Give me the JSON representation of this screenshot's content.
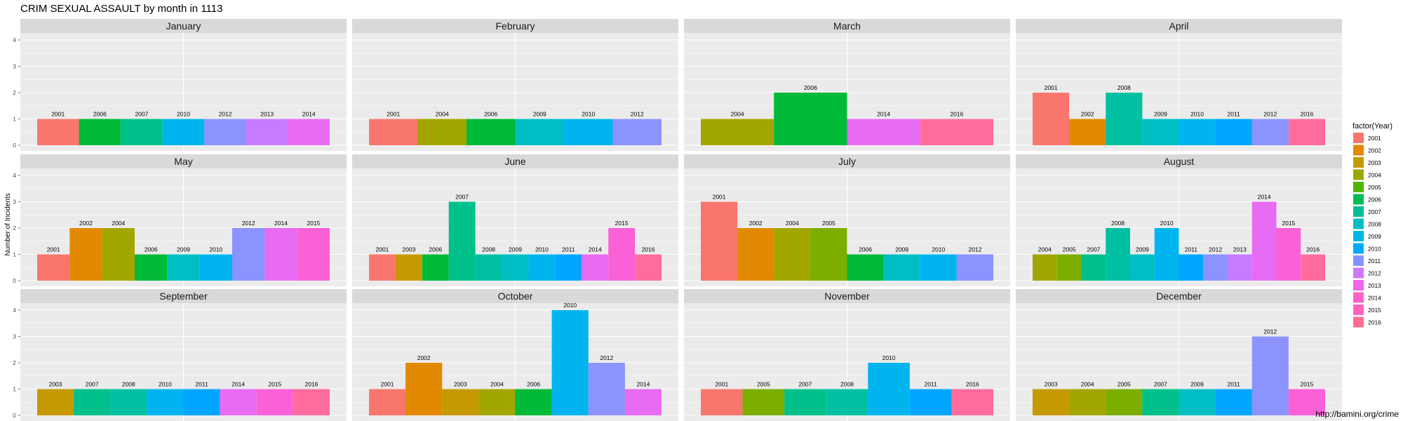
{
  "chart_title": "CRIM SEXUAL ASSAULT by month in 1113",
  "credit": "http://bamini.org/crime",
  "chart_data": {
    "type": "bar",
    "title": "CRIM SEXUAL ASSAULT by month in 1113",
    "xlabel": "",
    "ylabel": "Number of Incidents",
    "ylim": [
      0,
      4
    ],
    "yticks": [
      "0",
      "1",
      "2",
      "3",
      "4"
    ],
    "grid": true,
    "legend": {
      "title": "factor(Year)",
      "placement": "right",
      "entries": [
        {
          "label": "2001",
          "color": "#F8766D"
        },
        {
          "label": "2002",
          "color": "#E38900"
        },
        {
          "label": "2003",
          "color": "#C49A00"
        },
        {
          "label": "2004",
          "color": "#99A800"
        },
        {
          "label": "2005",
          "color": "#53B400"
        },
        {
          "label": "2006",
          "color": "#00BC56"
        },
        {
          "label": "2007",
          "color": "#00C094"
        },
        {
          "label": "2008",
          "color": "#00BFC4"
        },
        {
          "label": "2009",
          "color": "#00B8E7"
        },
        {
          "label": "2010",
          "color": "#00A9FF"
        },
        {
          "label": "2011",
          "color": "#8494FF"
        },
        {
          "label": "2012",
          "color": "#CF78FF"
        },
        {
          "label": "2013",
          "color": "#F066EA"
        },
        {
          "label": "2014",
          "color": "#FF61C9"
        },
        {
          "label": "2015",
          "color": "#FF62BC"
        },
        {
          "label": "2016",
          "color": "#FF6C90"
        }
      ]
    },
    "facets": [
      {
        "month": "January",
        "bars": [
          {
            "year": "2001",
            "value": 1,
            "color": "#F8766D"
          },
          {
            "year": "2006",
            "value": 1,
            "color": "#00BA38"
          },
          {
            "year": "2007",
            "value": 1,
            "color": "#00C08B"
          },
          {
            "year": "2010",
            "value": 1,
            "color": "#00B4F0"
          },
          {
            "year": "2012",
            "value": 1,
            "color": "#8B93FF"
          },
          {
            "year": "2013",
            "value": 1,
            "color": "#C77CFF"
          },
          {
            "year": "2014",
            "value": 1,
            "color": "#E76BF3"
          }
        ]
      },
      {
        "month": "February",
        "bars": [
          {
            "year": "2001",
            "value": 1,
            "color": "#F8766D"
          },
          {
            "year": "2004",
            "value": 1,
            "color": "#A3A500"
          },
          {
            "year": "2006",
            "value": 1,
            "color": "#00BA38"
          },
          {
            "year": "2009",
            "value": 1,
            "color": "#00BFC4"
          },
          {
            "year": "2010",
            "value": 1,
            "color": "#00B4F0"
          },
          {
            "year": "2012",
            "value": 1,
            "color": "#8B93FF"
          }
        ]
      },
      {
        "month": "March",
        "bars": [
          {
            "year": "2004",
            "value": 1,
            "color": "#A3A500"
          },
          {
            "year": "2006",
            "value": 2,
            "color": "#00BA38"
          },
          {
            "year": "2014",
            "value": 1,
            "color": "#E76BF3"
          },
          {
            "year": "2016",
            "value": 1,
            "color": "#FF6C9C"
          }
        ]
      },
      {
        "month": "April",
        "bars": [
          {
            "year": "2001",
            "value": 2,
            "color": "#F8766D"
          },
          {
            "year": "2002",
            "value": 1,
            "color": "#E38900"
          },
          {
            "year": "2008",
            "value": 2,
            "color": "#00C0A3"
          },
          {
            "year": "2009",
            "value": 1,
            "color": "#00BFC4"
          },
          {
            "year": "2010",
            "value": 1,
            "color": "#00B4F0"
          },
          {
            "year": "2011",
            "value": 1,
            "color": "#00A5FF"
          },
          {
            "year": "2012",
            "value": 1,
            "color": "#8B93FF"
          },
          {
            "year": "2016",
            "value": 1,
            "color": "#FF6C9C"
          }
        ]
      },
      {
        "month": "May",
        "bars": [
          {
            "year": "2001",
            "value": 1,
            "color": "#F8766D"
          },
          {
            "year": "2002",
            "value": 2,
            "color": "#E38900"
          },
          {
            "year": "2004",
            "value": 2,
            "color": "#A3A500"
          },
          {
            "year": "2006",
            "value": 1,
            "color": "#00BA38"
          },
          {
            "year": "2009",
            "value": 1,
            "color": "#00BFC4"
          },
          {
            "year": "2010",
            "value": 1,
            "color": "#00B4F0"
          },
          {
            "year": "2012",
            "value": 2,
            "color": "#8B93FF"
          },
          {
            "year": "2014",
            "value": 2,
            "color": "#E76BF3"
          },
          {
            "year": "2015",
            "value": 2,
            "color": "#FB61D7"
          }
        ]
      },
      {
        "month": "June",
        "bars": [
          {
            "year": "2001",
            "value": 1,
            "color": "#F8766D"
          },
          {
            "year": "2003",
            "value": 1,
            "color": "#C49A00"
          },
          {
            "year": "2006",
            "value": 1,
            "color": "#00BA38"
          },
          {
            "year": "2007",
            "value": 3,
            "color": "#00C08B"
          },
          {
            "year": "2008",
            "value": 1,
            "color": "#00C0A3"
          },
          {
            "year": "2009",
            "value": 1,
            "color": "#00BFC4"
          },
          {
            "year": "2010",
            "value": 1,
            "color": "#00B4F0"
          },
          {
            "year": "2011",
            "value": 1,
            "color": "#00A5FF"
          },
          {
            "year": "2014",
            "value": 1,
            "color": "#E76BF3"
          },
          {
            "year": "2015",
            "value": 2,
            "color": "#FB61D7"
          },
          {
            "year": "2016",
            "value": 1,
            "color": "#FF6C9C"
          }
        ]
      },
      {
        "month": "July",
        "bars": [
          {
            "year": "2001",
            "value": 3,
            "color": "#F8766D"
          },
          {
            "year": "2002",
            "value": 2,
            "color": "#E38900"
          },
          {
            "year": "2004",
            "value": 2,
            "color": "#A3A500"
          },
          {
            "year": "2005",
            "value": 2,
            "color": "#7CAE00"
          },
          {
            "year": "2006",
            "value": 1,
            "color": "#00BA38"
          },
          {
            "year": "2009",
            "value": 1,
            "color": "#00BFC4"
          },
          {
            "year": "2010",
            "value": 1,
            "color": "#00B4F0"
          },
          {
            "year": "2012",
            "value": 1,
            "color": "#8B93FF"
          }
        ]
      },
      {
        "month": "August",
        "bars": [
          {
            "year": "2004",
            "value": 1,
            "color": "#A3A500"
          },
          {
            "year": "2005",
            "value": 1,
            "color": "#7CAE00"
          },
          {
            "year": "2007",
            "value": 1,
            "color": "#00C08B"
          },
          {
            "year": "2008",
            "value": 2,
            "color": "#00C0A3"
          },
          {
            "year": "2009",
            "value": 1,
            "color": "#00BFC4"
          },
          {
            "year": "2010",
            "value": 2,
            "color": "#00B4F0"
          },
          {
            "year": "2011",
            "value": 1,
            "color": "#00A5FF"
          },
          {
            "year": "2012",
            "value": 1,
            "color": "#8B93FF"
          },
          {
            "year": "2013",
            "value": 1,
            "color": "#C77CFF"
          },
          {
            "year": "2014",
            "value": 3,
            "color": "#E76BF3"
          },
          {
            "year": "2015",
            "value": 2,
            "color": "#FB61D7"
          },
          {
            "year": "2016",
            "value": 1,
            "color": "#FF6C9C"
          }
        ]
      },
      {
        "month": "September",
        "bars": [
          {
            "year": "2003",
            "value": 1,
            "color": "#C49A00"
          },
          {
            "year": "2007",
            "value": 1,
            "color": "#00C08B"
          },
          {
            "year": "2008",
            "value": 1,
            "color": "#00C0A3"
          },
          {
            "year": "2010",
            "value": 1,
            "color": "#00B4F0"
          },
          {
            "year": "2011",
            "value": 1,
            "color": "#00A5FF"
          },
          {
            "year": "2014",
            "value": 1,
            "color": "#E76BF3"
          },
          {
            "year": "2015",
            "value": 1,
            "color": "#FB61D7"
          },
          {
            "year": "2016",
            "value": 1,
            "color": "#FF6C9C"
          }
        ]
      },
      {
        "month": "October",
        "bars": [
          {
            "year": "2001",
            "value": 1,
            "color": "#F8766D"
          },
          {
            "year": "2002",
            "value": 2,
            "color": "#E38900"
          },
          {
            "year": "2003",
            "value": 1,
            "color": "#C49A00"
          },
          {
            "year": "2004",
            "value": 1,
            "color": "#A3A500"
          },
          {
            "year": "2006",
            "value": 1,
            "color": "#00BA38"
          },
          {
            "year": "2010",
            "value": 4,
            "color": "#00B4F0"
          },
          {
            "year": "2012",
            "value": 2,
            "color": "#8B93FF"
          },
          {
            "year": "2014",
            "value": 1,
            "color": "#E76BF3"
          }
        ]
      },
      {
        "month": "November",
        "bars": [
          {
            "year": "2001",
            "value": 1,
            "color": "#F8766D"
          },
          {
            "year": "2005",
            "value": 1,
            "color": "#7CAE00"
          },
          {
            "year": "2007",
            "value": 1,
            "color": "#00C08B"
          },
          {
            "year": "2008",
            "value": 1,
            "color": "#00C0A3"
          },
          {
            "year": "2010",
            "value": 2,
            "color": "#00B4F0"
          },
          {
            "year": "2011",
            "value": 1,
            "color": "#00A5FF"
          },
          {
            "year": "2016",
            "value": 1,
            "color": "#FF6C9C"
          }
        ]
      },
      {
        "month": "December",
        "bars": [
          {
            "year": "2003",
            "value": 1,
            "color": "#C49A00"
          },
          {
            "year": "2004",
            "value": 1,
            "color": "#A3A500"
          },
          {
            "year": "2005",
            "value": 1,
            "color": "#7CAE00"
          },
          {
            "year": "2007",
            "value": 1,
            "color": "#00C08B"
          },
          {
            "year": "2009",
            "value": 1,
            "color": "#00BFC4"
          },
          {
            "year": "2011",
            "value": 1,
            "color": "#00A5FF"
          },
          {
            "year": "2012",
            "value": 3,
            "color": "#8B93FF"
          },
          {
            "year": "2015",
            "value": 1,
            "color": "#FB61D7"
          }
        ]
      }
    ]
  }
}
